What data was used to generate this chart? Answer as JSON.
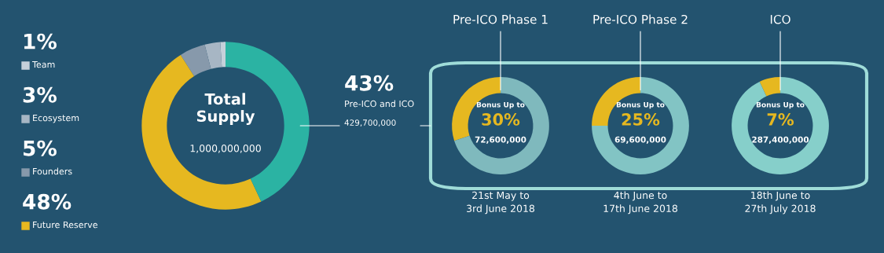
{
  "chart_data": [
    {
      "type": "donut",
      "title": "Total Supply",
      "subtitle": "1,000,000,000",
      "categories": [
        "Team",
        "Ecosystem",
        "Founders",
        "Future Reserve",
        "Pre-ICO and ICO"
      ],
      "values": [
        1,
        3,
        5,
        48,
        43
      ],
      "value_labels": [
        "1%",
        "3%",
        "5%",
        "48%",
        "43%"
      ],
      "colors": [
        "#c5d0da",
        "#a7b6c4",
        "#8799ab",
        "#e6b820",
        "#2bb3a3"
      ],
      "annotations": [
        "429,700,000"
      ],
      "legend": "left"
    },
    {
      "type": "donut",
      "title": "Pre-ICO Phase 1",
      "subtitle": "72,600,000",
      "categories": [
        null,
        null
      ],
      "values": [
        30,
        70
      ],
      "value_labels": [
        "30%",
        null
      ],
      "colors": [
        "#e6b820",
        "#7fb9bd"
      ],
      "annotations": [
        "Bonus Up to",
        "21st May to\n3rd June 2018"
      ]
    },
    {
      "type": "donut",
      "title": "Pre-ICO Phase 2",
      "subtitle": "69,600,000",
      "categories": [
        null,
        null
      ],
      "values": [
        25,
        75
      ],
      "value_labels": [
        "25%",
        null
      ],
      "colors": [
        "#e6b820",
        "#82c4c4"
      ],
      "annotations": [
        "Bonus Up to",
        "4th June to\n17th June 2018"
      ]
    },
    {
      "type": "donut",
      "title": "ICO",
      "subtitle": "287,400,000",
      "categories": [
        null,
        null
      ],
      "values": [
        7,
        93
      ],
      "value_labels": [
        "7%",
        null
      ],
      "colors": [
        "#e6b820",
        "#86cfca"
      ],
      "annotations": [
        "Bonus Up to",
        "18th June to\n27th July 2018"
      ]
    }
  ]
}
